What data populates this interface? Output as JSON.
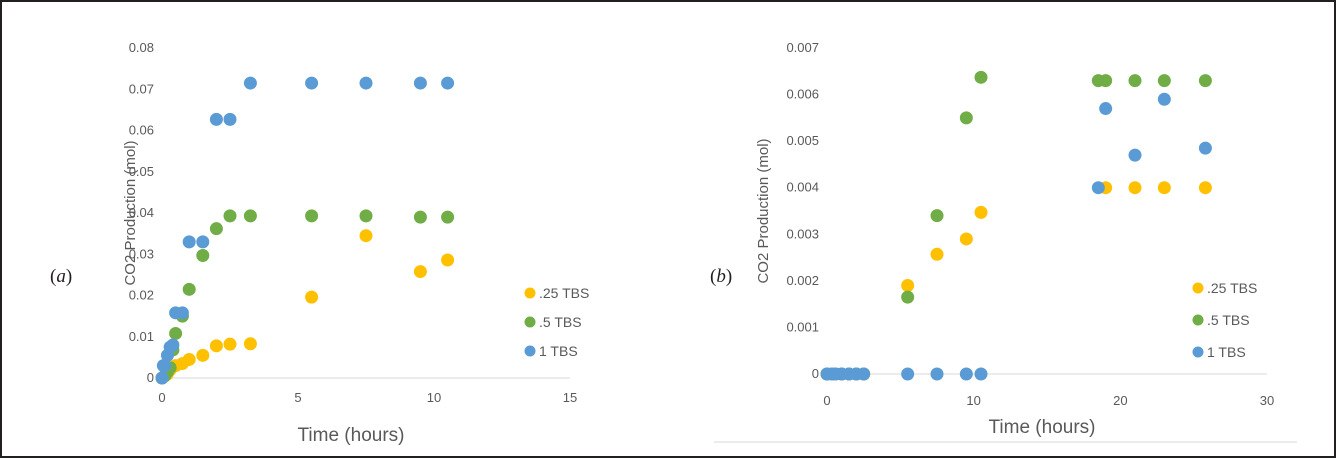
{
  "colors": {
    "series_0.25": "#FFC000",
    "series_0.5": "#70AD47",
    "series_1": "#5B9BD5",
    "frame": "#231f20",
    "text": "#595959"
  },
  "chart_data": [
    {
      "panel_label": "a",
      "type": "scatter",
      "title": "",
      "xlabel": "Time (hours)",
      "ylabel": "CO2 Production (mol)",
      "xlim": [
        0,
        15
      ],
      "ylim": [
        0,
        0.08
      ],
      "xticks": [
        0,
        5,
        10,
        15
      ],
      "xtick_labels": [
        "0",
        "5",
        "10",
        "15"
      ],
      "yticks": [
        0,
        0.01,
        0.02,
        0.03,
        0.04,
        0.05,
        0.06,
        0.07,
        0.08
      ],
      "ytick_labels": [
        "0",
        "0.01",
        "0.02",
        "0.03",
        "0.04",
        "0.05",
        "0.06",
        "0.07",
        "0.08"
      ],
      "grid": false,
      "legend": "right",
      "series": [
        {
          "name": ".25 TBS",
          "color_key": "series_0.25",
          "points": [
            [
              0,
              0
            ],
            [
              0.1,
              0.0005
            ],
            [
              0.2,
              0.001
            ],
            [
              0.3,
              0.002
            ],
            [
              0.5,
              0.003
            ],
            [
              0.75,
              0.0035
            ],
            [
              1,
              0.0045
            ],
            [
              1.5,
              0.0055
            ],
            [
              2,
              0.0078
            ],
            [
              2.5,
              0.0082
            ],
            [
              3.25,
              0.0083
            ],
            [
              5.5,
              0.0196
            ],
            [
              7.5,
              0.0345
            ],
            [
              9.5,
              0.0258
            ],
            [
              10.5,
              0.0286
            ]
          ]
        },
        {
          "name": ".5 TBS",
          "color_key": "series_0.5",
          "points": [
            [
              0,
              0
            ],
            [
              0.1,
              0.0005
            ],
            [
              0.2,
              0.0015
            ],
            [
              0.3,
              0.0025
            ],
            [
              0.4,
              0.0068
            ],
            [
              0.5,
              0.0108
            ],
            [
              0.75,
              0.015
            ],
            [
              1,
              0.0215
            ],
            [
              1.5,
              0.0297
            ],
            [
              2,
              0.0362
            ],
            [
              2.5,
              0.0393
            ],
            [
              3.25,
              0.0393
            ],
            [
              5.5,
              0.0393
            ],
            [
              7.5,
              0.0393
            ],
            [
              9.5,
              0.039
            ],
            [
              10.5,
              0.039
            ]
          ]
        },
        {
          "name": "1 TBS",
          "color_key": "series_1",
          "points": [
            [
              0,
              0
            ],
            [
              0.05,
              0.003
            ],
            [
              0.1,
              0.003
            ],
            [
              0.2,
              0.0055
            ],
            [
              0.3,
              0.0075
            ],
            [
              0.4,
              0.008
            ],
            [
              0.5,
              0.0158
            ],
            [
              0.75,
              0.0158
            ],
            [
              1,
              0.033
            ],
            [
              1.5,
              0.033
            ],
            [
              2,
              0.0627
            ],
            [
              2.5,
              0.0627
            ],
            [
              3.25,
              0.0715
            ],
            [
              5.5,
              0.0715
            ],
            [
              7.5,
              0.0715
            ],
            [
              9.5,
              0.0715
            ],
            [
              10.5,
              0.0715
            ]
          ]
        }
      ]
    },
    {
      "panel_label": "b",
      "type": "scatter",
      "title": "",
      "xlabel": "Time (hours)",
      "ylabel": "CO2 Production (mol)",
      "xlim": [
        0,
        30
      ],
      "ylim": [
        0,
        0.007
      ],
      "xticks": [
        0,
        10,
        20,
        30
      ],
      "xtick_labels": [
        "0",
        "10",
        "20",
        "30"
      ],
      "yticks": [
        0,
        0.001,
        0.002,
        0.003,
        0.004,
        0.005,
        0.006,
        0.007
      ],
      "ytick_labels": [
        "0",
        "0.001",
        "0.002",
        "0.003",
        "0.004",
        "0.005",
        "0.006",
        "0.007"
      ],
      "grid": false,
      "legend": "right",
      "series": [
        {
          "name": ".25 TBS",
          "color_key": "series_0.25",
          "points": [
            [
              0,
              0
            ],
            [
              0.5,
              0
            ],
            [
              1,
              0
            ],
            [
              1.5,
              0
            ],
            [
              2,
              0
            ],
            [
              2.5,
              0
            ],
            [
              5.5,
              0.0019
            ],
            [
              7.5,
              0.00257
            ],
            [
              9.5,
              0.0029
            ],
            [
              10.5,
              0.00347
            ],
            [
              19,
              0.004
            ],
            [
              21,
              0.004
            ],
            [
              23,
              0.004
            ],
            [
              25.8,
              0.004
            ]
          ]
        },
        {
          "name": ".5 TBS",
          "color_key": "series_0.5",
          "points": [
            [
              0,
              0
            ],
            [
              0.5,
              0
            ],
            [
              1,
              0
            ],
            [
              1.5,
              0
            ],
            [
              2,
              0
            ],
            [
              2.5,
              0
            ],
            [
              5.5,
              0.00165
            ],
            [
              7.5,
              0.0034
            ],
            [
              9.5,
              0.0055
            ],
            [
              10.5,
              0.00637
            ],
            [
              18.5,
              0.0063
            ],
            [
              19,
              0.0063
            ],
            [
              21,
              0.0063
            ],
            [
              23,
              0.0063
            ],
            [
              25.8,
              0.0063
            ]
          ]
        },
        {
          "name": "1 TBS",
          "color_key": "series_1",
          "points": [
            [
              0,
              0
            ],
            [
              0.3,
              0
            ],
            [
              0.6,
              0
            ],
            [
              1,
              0
            ],
            [
              1.5,
              0
            ],
            [
              2,
              0
            ],
            [
              2.5,
              0
            ],
            [
              5.5,
              0
            ],
            [
              7.5,
              0
            ],
            [
              9.5,
              0
            ],
            [
              10.5,
              0
            ],
            [
              18.5,
              0.004
            ],
            [
              19,
              0.0057
            ],
            [
              21,
              0.0047
            ],
            [
              23,
              0.0059
            ],
            [
              25.8,
              0.00485
            ]
          ]
        }
      ]
    }
  ]
}
